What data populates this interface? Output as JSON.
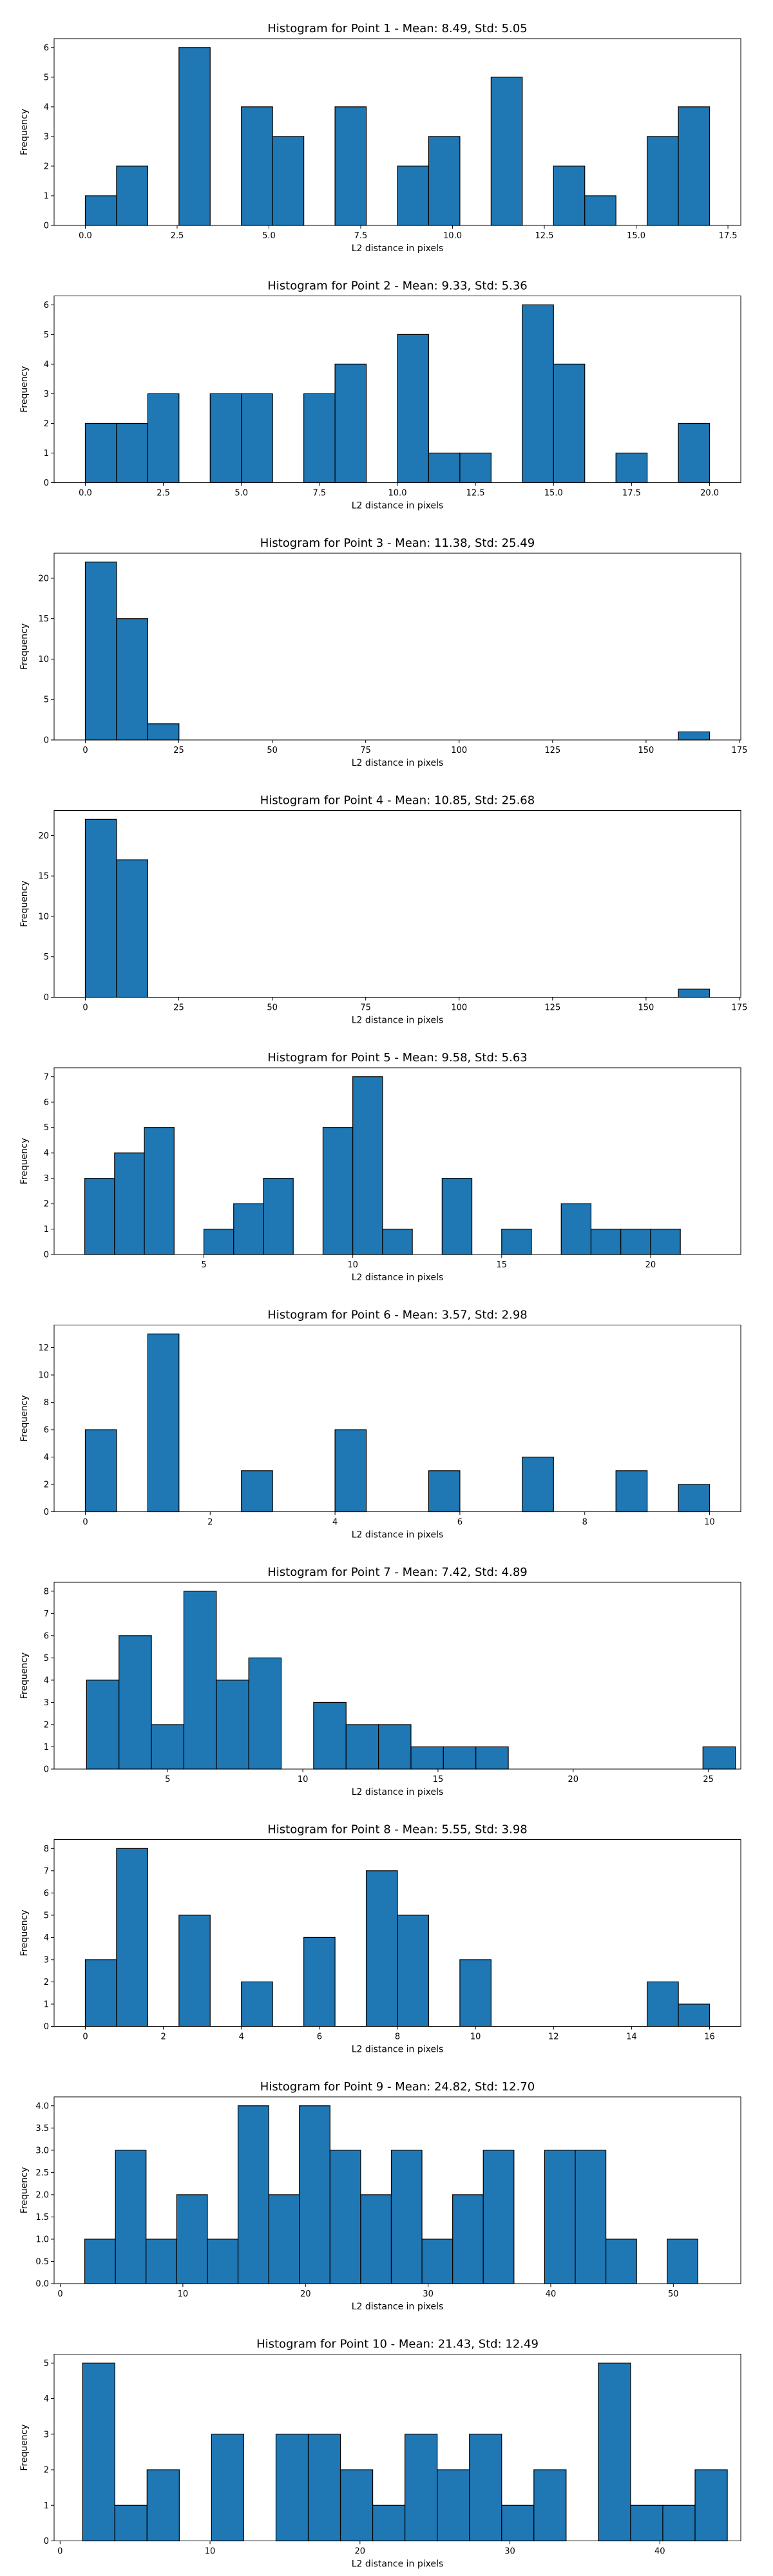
{
  "chart_data": [
    {
      "type": "bar",
      "title": "Histogram for Point 1 - Mean: 8.49, Std: 5.05",
      "xlabel": "L2 distance in pixels",
      "ylabel": "Frequency",
      "xlim": [
        -0.85,
        17.85
      ],
      "ylim": [
        0,
        6.3
      ],
      "xticks": [
        0.0,
        2.5,
        5.0,
        7.5,
        10.0,
        12.5,
        15.0,
        17.5
      ],
      "xtick_labels": [
        "0.0",
        "2.5",
        "5.0",
        "7.5",
        "10.0",
        "12.5",
        "15.0",
        "17.5"
      ],
      "yticks": [
        0,
        1,
        2,
        3,
        4,
        5,
        6
      ],
      "ytick_labels": [
        "0",
        "1",
        "2",
        "3",
        "4",
        "5",
        "6"
      ],
      "bin_edges": [
        0.0,
        0.85,
        1.7,
        2.55,
        3.4,
        4.25,
        5.1,
        5.95,
        6.8,
        7.65,
        8.5,
        9.35,
        10.2,
        11.05,
        11.9,
        12.75,
        13.6,
        14.45,
        15.3,
        16.15,
        17.0
      ],
      "counts": [
        1,
        2,
        0,
        6,
        0,
        4,
        3,
        0,
        4,
        0,
        2,
        3,
        0,
        5,
        0,
        2,
        1,
        0,
        3,
        4
      ],
      "grid": false
    },
    {
      "type": "bar",
      "title": "Histogram for Point 2 - Mean: 9.33, Std: 5.36",
      "xlabel": "L2 distance in pixels",
      "ylabel": "Frequency",
      "xlim": [
        -1.0,
        21.0
      ],
      "ylim": [
        0,
        6.3
      ],
      "xticks": [
        0.0,
        2.5,
        5.0,
        7.5,
        10.0,
        12.5,
        15.0,
        17.5,
        20.0
      ],
      "xtick_labels": [
        "0.0",
        "2.5",
        "5.0",
        "7.5",
        "10.0",
        "12.5",
        "15.0",
        "17.5",
        "20.0"
      ],
      "yticks": [
        0,
        1,
        2,
        3,
        4,
        5,
        6
      ],
      "ytick_labels": [
        "0",
        "1",
        "2",
        "3",
        "4",
        "5",
        "6"
      ],
      "bin_edges": [
        0.0,
        1.0,
        2.0,
        3.0,
        4.0,
        5.0,
        6.0,
        7.0,
        8.0,
        9.0,
        10.0,
        11.0,
        12.0,
        13.0,
        14.0,
        15.0,
        16.0,
        17.0,
        18.0,
        19.0,
        20.0
      ],
      "counts": [
        2,
        2,
        3,
        0,
        3,
        3,
        0,
        3,
        4,
        0,
        5,
        1,
        1,
        0,
        6,
        4,
        0,
        1,
        0,
        2
      ],
      "grid": false
    },
    {
      "type": "bar",
      "title": "Histogram for Point 3 - Mean: 11.38, Std: 25.49",
      "xlabel": "L2 distance in pixels",
      "ylabel": "Frequency",
      "xlim": [
        -8.35,
        175.35
      ],
      "ylim": [
        0,
        23.1
      ],
      "xticks": [
        0,
        25,
        50,
        75,
        100,
        125,
        150,
        175
      ],
      "xtick_labels": [
        "0",
        "25",
        "50",
        "75",
        "100",
        "125",
        "150",
        "175"
      ],
      "yticks": [
        0,
        5,
        10,
        15,
        20
      ],
      "ytick_labels": [
        "0",
        "5",
        "10",
        "15",
        "20"
      ],
      "bin_edges": [
        0.0,
        8.35,
        16.7,
        25.05,
        33.4,
        41.75,
        50.1,
        58.45,
        66.8,
        75.15,
        83.5,
        91.85,
        100.2,
        108.55,
        116.9,
        125.25,
        133.6,
        141.95,
        150.3,
        158.65,
        167.0
      ],
      "counts": [
        22,
        15,
        2,
        0,
        0,
        0,
        0,
        0,
        0,
        0,
        0,
        0,
        0,
        0,
        0,
        0,
        0,
        0,
        0,
        1
      ],
      "grid": false
    },
    {
      "type": "bar",
      "title": "Histogram for Point 4 - Mean: 10.85, Std: 25.68",
      "xlabel": "L2 distance in pixels",
      "ylabel": "Frequency",
      "xlim": [
        -8.35,
        175.35
      ],
      "ylim": [
        0,
        23.1
      ],
      "xticks": [
        0,
        25,
        50,
        75,
        100,
        125,
        150,
        175
      ],
      "xtick_labels": [
        "0",
        "25",
        "50",
        "75",
        "100",
        "125",
        "150",
        "175"
      ],
      "yticks": [
        0,
        5,
        10,
        15,
        20
      ],
      "ytick_labels": [
        "0",
        "5",
        "10",
        "15",
        "20"
      ],
      "bin_edges": [
        0.0,
        8.35,
        16.7,
        25.05,
        33.4,
        41.75,
        50.1,
        58.45,
        66.8,
        75.15,
        83.5,
        91.85,
        100.2,
        108.55,
        116.9,
        125.25,
        133.6,
        141.95,
        150.3,
        158.65,
        167.0
      ],
      "counts": [
        22,
        17,
        0,
        0,
        0,
        0,
        0,
        0,
        0,
        0,
        0,
        0,
        0,
        0,
        0,
        0,
        0,
        0,
        0,
        1
      ],
      "grid": false
    },
    {
      "type": "bar",
      "title": "Histogram for Point 5 - Mean: 9.58, Std: 5.63",
      "xlabel": "L2 distance in pixels",
      "ylabel": "Frequency",
      "xlim": [
        -0.03,
        23.03
      ],
      "ylim": [
        0,
        7.35
      ],
      "xticks": [
        5,
        10,
        15,
        20
      ],
      "xtick_labels": [
        "5",
        "10",
        "15",
        "20"
      ],
      "yticks": [
        0,
        1,
        2,
        3,
        4,
        5,
        6,
        7
      ],
      "ytick_labels": [
        "0",
        "1",
        "2",
        "3",
        "4",
        "5",
        "6",
        "7"
      ],
      "bin_edges": [
        1.0,
        2.0,
        3.0,
        4.0,
        5.0,
        6.0,
        7.0,
        8.0,
        9.0,
        10.0,
        11.0,
        12.0,
        13.0,
        14.0,
        15.0,
        16.0,
        17.0,
        18.0,
        19.0,
        20.0,
        21.0
      ],
      "counts": [
        3,
        4,
        5,
        0,
        1,
        2,
        3,
        0,
        5,
        7,
        1,
        0,
        3,
        0,
        1,
        0,
        2,
        1,
        1,
        1
      ],
      "grid": false
    },
    {
      "type": "bar",
      "title": "Histogram for Point 6 - Mean: 3.57, Std: 2.98",
      "xlabel": "L2 distance in pixels",
      "ylabel": "Frequency",
      "xlim": [
        -0.5,
        10.5
      ],
      "ylim": [
        0,
        13.65
      ],
      "xticks": [
        0,
        2,
        4,
        6,
        8,
        10
      ],
      "xtick_labels": [
        "0",
        "2",
        "4",
        "6",
        "8",
        "10"
      ],
      "yticks": [
        0,
        2,
        4,
        6,
        8,
        10,
        12
      ],
      "ytick_labels": [
        "0",
        "2",
        "4",
        "6",
        "8",
        "10",
        "12"
      ],
      "bin_edges": [
        0.0,
        0.5,
        1.0,
        1.5,
        2.0,
        2.5,
        3.0,
        3.5,
        4.0,
        4.5,
        5.0,
        5.5,
        6.0,
        6.5,
        7.0,
        7.5,
        8.0,
        8.5,
        9.0,
        9.5,
        10.0
      ],
      "counts": [
        6,
        0,
        13,
        0,
        0,
        3,
        0,
        0,
        6,
        0,
        0,
        3,
        0,
        0,
        4,
        0,
        0,
        3,
        0,
        2
      ],
      "grid": false
    },
    {
      "type": "bar",
      "title": "Histogram for Point 7 - Mean: 7.42, Std: 4.89",
      "xlabel": "L2 distance in pixels",
      "ylabel": "Frequency",
      "xlim": [
        0.8,
        26.2
      ],
      "ylim": [
        0,
        8.4
      ],
      "xticks": [
        5,
        10,
        15,
        20,
        25
      ],
      "xtick_labels": [
        "5",
        "10",
        "15",
        "20",
        "25"
      ],
      "yticks": [
        0,
        1,
        2,
        3,
        4,
        5,
        6,
        7,
        8
      ],
      "ytick_labels": [
        "0",
        "1",
        "2",
        "3",
        "4",
        "5",
        "6",
        "7",
        "8"
      ],
      "bin_edges": [
        2.0,
        3.2,
        4.4,
        5.6,
        6.8,
        8.0,
        9.2,
        10.4,
        11.6,
        12.8,
        14.0,
        15.2,
        16.4,
        17.6,
        18.8,
        20.0,
        21.2,
        22.4,
        23.6,
        24.8,
        26.0
      ],
      "counts": [
        4,
        6,
        2,
        8,
        4,
        5,
        0,
        3,
        2,
        2,
        1,
        1,
        1,
        0,
        0,
        0,
        0,
        0,
        0,
        1
      ],
      "grid": false
    },
    {
      "type": "bar",
      "title": "Histogram for Point 8 - Mean: 5.55, Std: 3.98",
      "xlabel": "L2 distance in pixels",
      "ylabel": "Frequency",
      "xlim": [
        -0.8,
        16.8
      ],
      "ylim": [
        0,
        8.4
      ],
      "xticks": [
        0,
        2,
        4,
        6,
        8,
        10,
        12,
        14,
        16
      ],
      "xtick_labels": [
        "0",
        "2",
        "4",
        "6",
        "8",
        "10",
        "12",
        "14",
        "16"
      ],
      "yticks": [
        0,
        1,
        2,
        3,
        4,
        5,
        6,
        7,
        8
      ],
      "ytick_labels": [
        "0",
        "1",
        "2",
        "3",
        "4",
        "5",
        "6",
        "7",
        "8"
      ],
      "bin_edges": [
        0.0,
        0.8,
        1.6,
        2.4,
        3.2,
        4.0,
        4.8,
        5.6,
        6.4,
        7.2,
        8.0,
        8.8,
        9.6,
        10.4,
        11.2,
        12.0,
        12.8,
        13.6,
        14.4,
        15.2,
        16.0
      ],
      "counts": [
        3,
        8,
        0,
        5,
        0,
        2,
        0,
        4,
        0,
        7,
        5,
        0,
        3,
        0,
        0,
        0,
        0,
        0,
        2,
        1
      ],
      "grid": false
    },
    {
      "type": "bar",
      "title": "Histogram for Point 9 - Mean: 24.82, Std: 12.70",
      "xlabel": "L2 distance in pixels",
      "ylabel": "Frequency",
      "xlim": [
        -0.5,
        55.5
      ],
      "ylim": [
        0,
        4.2
      ],
      "xticks": [
        0,
        10,
        20,
        30,
        40,
        50
      ],
      "xtick_labels": [
        "0",
        "10",
        "20",
        "30",
        "40",
        "50"
      ],
      "yticks": [
        0.0,
        0.5,
        1.0,
        1.5,
        2.0,
        2.5,
        3.0,
        3.5,
        4.0
      ],
      "ytick_labels": [
        "0.0",
        "0.5",
        "1.0",
        "1.5",
        "2.0",
        "2.5",
        "3.0",
        "3.5",
        "4.0"
      ],
      "bin_edges": [
        2.0,
        4.5,
        7.0,
        9.5,
        12.0,
        14.5,
        17.0,
        19.5,
        22.0,
        24.5,
        27.0,
        29.5,
        32.0,
        34.5,
        37.0,
        39.5,
        42.0,
        44.5,
        47.0,
        49.5,
        52.0
      ],
      "counts": [
        1,
        3,
        1,
        2,
        1,
        4,
        2,
        4,
        3,
        2,
        3,
        1,
        2,
        3,
        0,
        3,
        3,
        1,
        0,
        1
      ],
      "grid": false
    },
    {
      "type": "bar",
      "title": "Histogram for Point 10 - Mean: 21.43, Std: 12.49",
      "xlabel": "L2 distance in pixels",
      "ylabel": "Frequency",
      "xlim": [
        -0.4,
        45.4
      ],
      "ylim": [
        0,
        5.25
      ],
      "xticks": [
        0,
        10,
        20,
        30,
        40
      ],
      "xtick_labels": [
        "0",
        "10",
        "20",
        "30",
        "40"
      ],
      "yticks": [
        0,
        1,
        2,
        3,
        4,
        5
      ],
      "ytick_labels": [
        "0",
        "1",
        "2",
        "3",
        "4",
        "5"
      ],
      "bin_edges": [
        1.5,
        3.65,
        5.8,
        7.95,
        10.1,
        12.25,
        14.4,
        16.55,
        18.7,
        20.85,
        23.0,
        25.15,
        27.3,
        29.45,
        31.6,
        33.75,
        35.9,
        38.05,
        40.2,
        42.35,
        44.5
      ],
      "counts": [
        5,
        1,
        2,
        0,
        3,
        0,
        3,
        3,
        2,
        1,
        3,
        2,
        3,
        1,
        2,
        0,
        5,
        1,
        1,
        2
      ],
      "grid": false
    }
  ],
  "colors": {
    "bar_fill": "#1f77b4",
    "bar_edge": "#000000",
    "axes": "#000000",
    "background": "#ffffff"
  }
}
